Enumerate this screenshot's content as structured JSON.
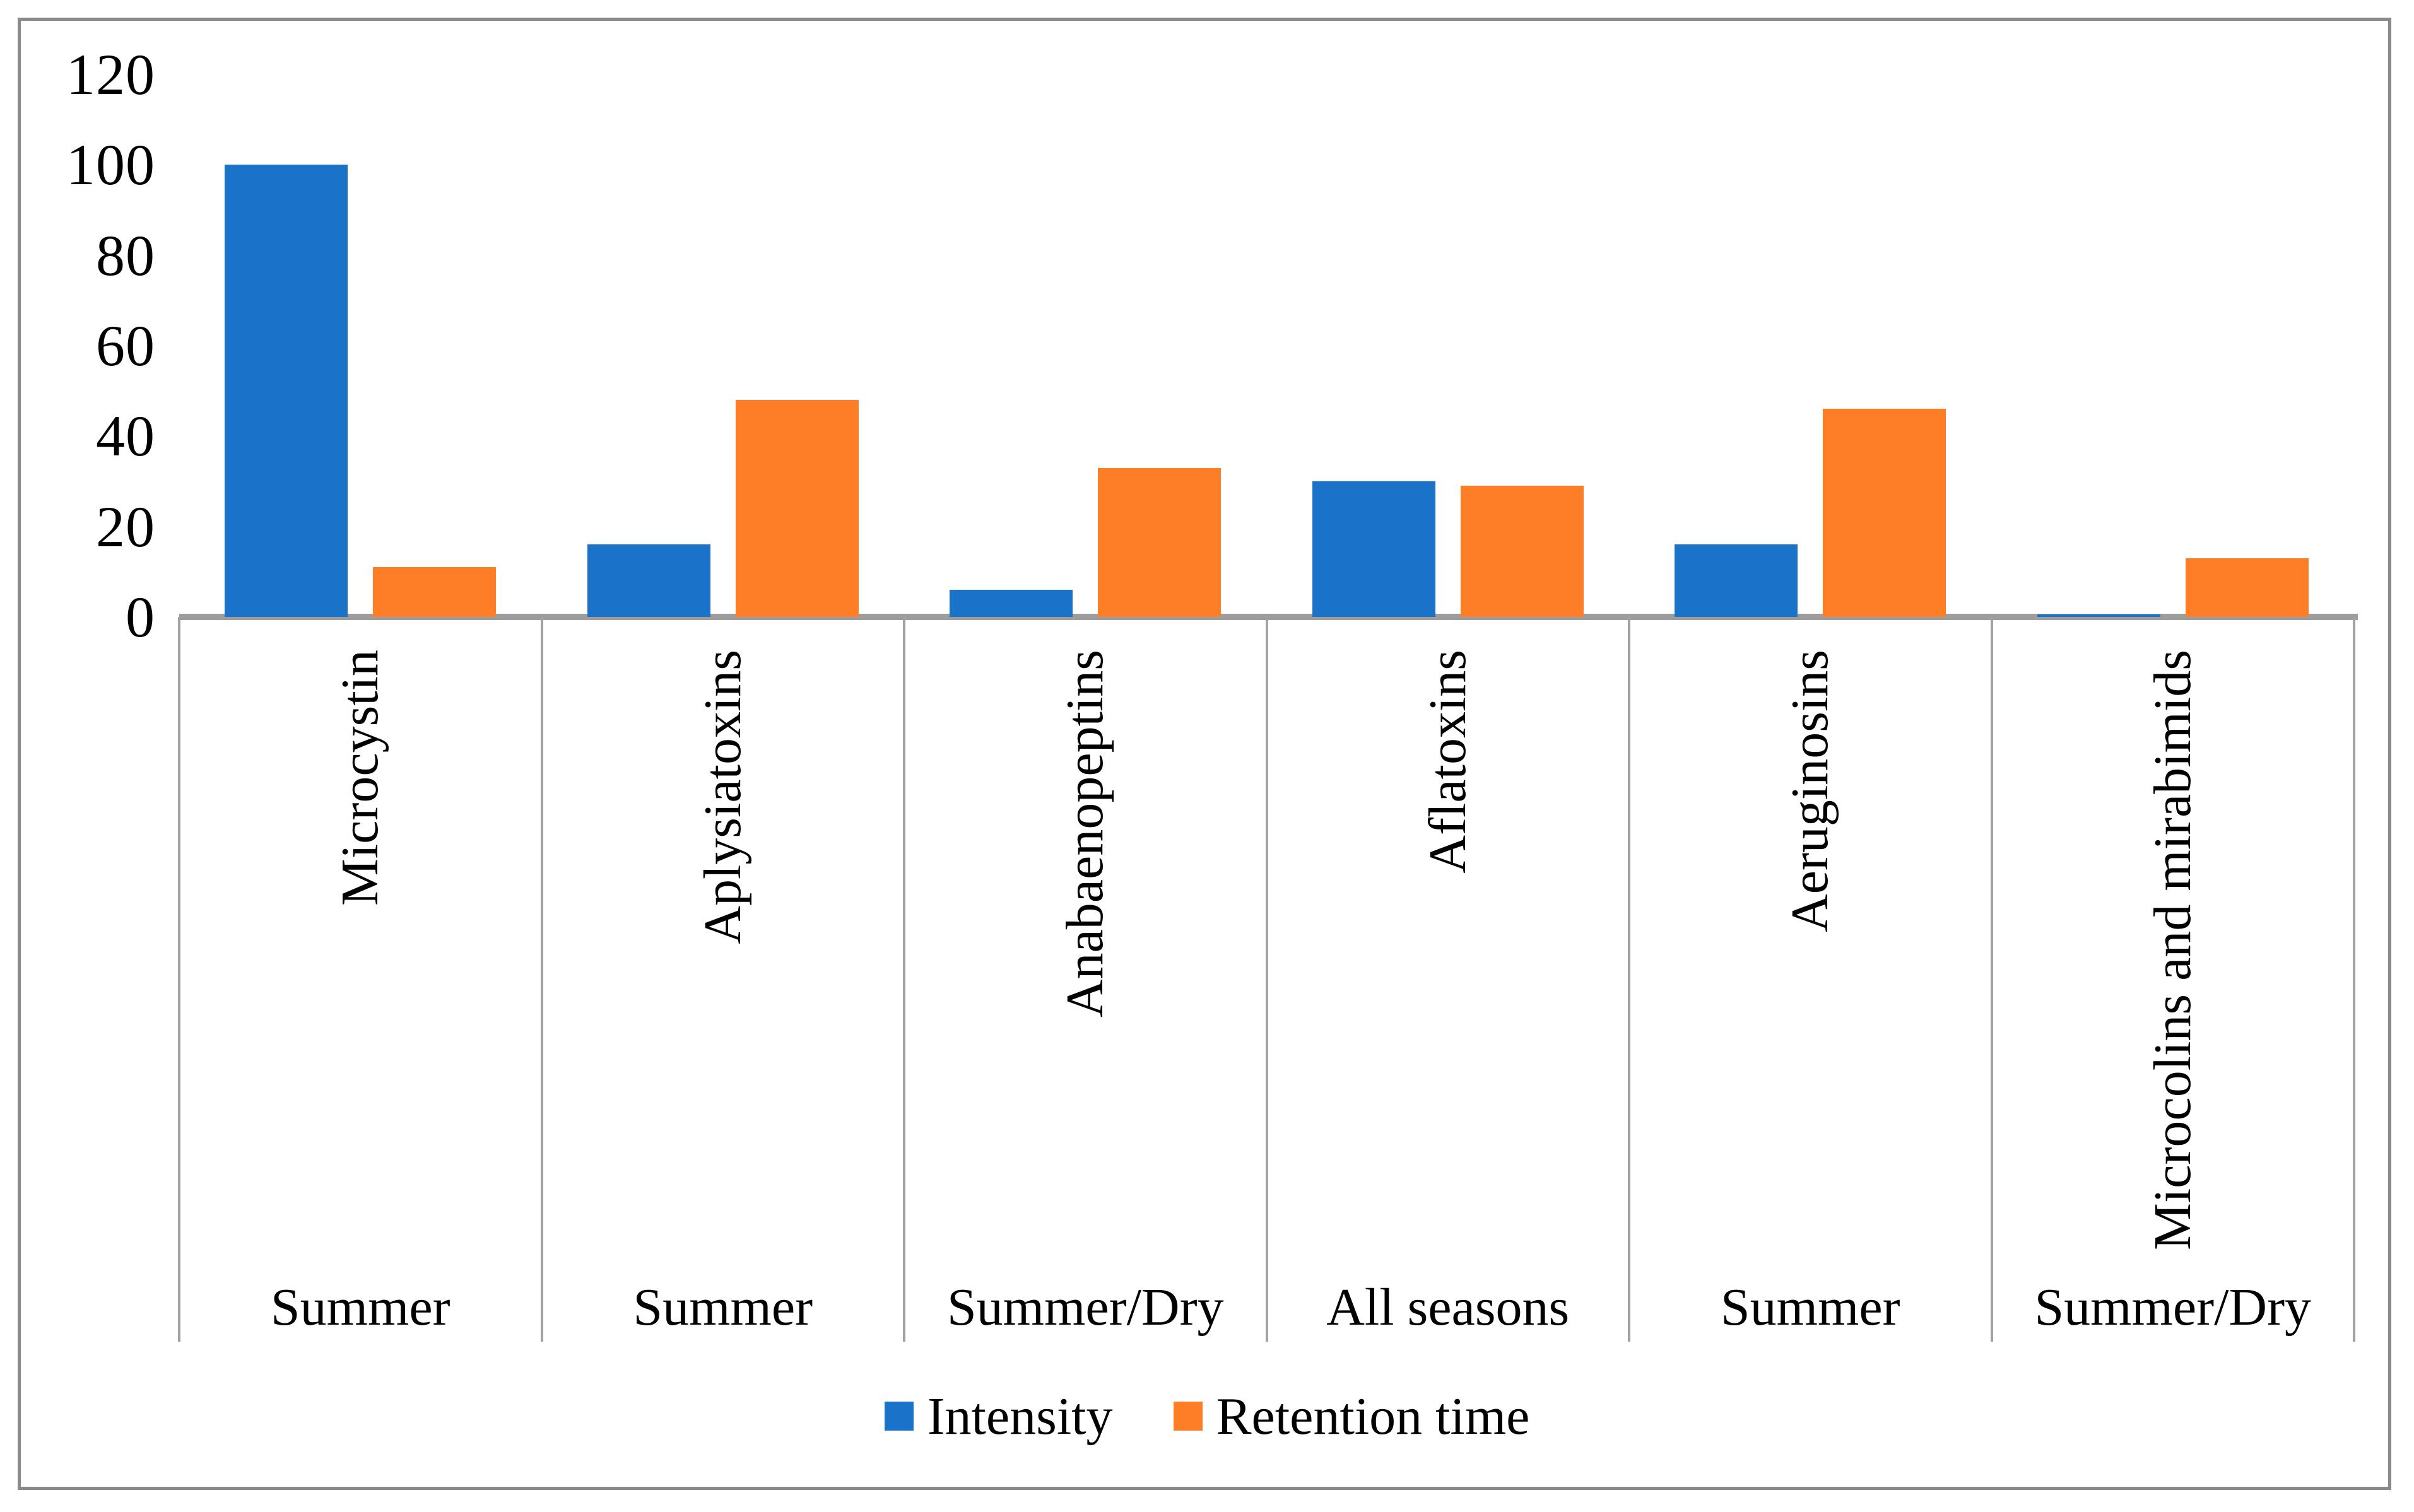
{
  "figure": {
    "background": "#ffffff",
    "border_color": "#8a8a8a",
    "axis_line_color": "#9d9d9d",
    "divider_color": "#a3a3a3",
    "title": ""
  },
  "chart_data": {
    "type": "bar",
    "categories": [
      "Microcystin",
      "Aplysiatoxins",
      "Anabaenopeptins",
      "Aflatoxins",
      "Aeruginosins",
      "Microcolins and mirabimids"
    ],
    "category_seasons": [
      "Summer",
      "Summer",
      "Summer/Dry",
      "All seasons",
      "Summer",
      "Summer/Dry"
    ],
    "series": [
      {
        "name": "Intensity",
        "color": "#1a73c8",
        "values": [
          100,
          16,
          6,
          30,
          16,
          0.5
        ]
      },
      {
        "name": "Retention time",
        "color": "#fd7e27",
        "values": [
          11,
          48,
          33,
          29,
          46,
          13
        ]
      }
    ],
    "ylim": [
      0,
      120
    ],
    "yticks": [
      0,
      20,
      40,
      60,
      80,
      100,
      120
    ],
    "xlabel": "",
    "ylabel": "",
    "grid": false,
    "legend_position": "bottom"
  },
  "legend": {
    "items": [
      {
        "label": "Intensity",
        "color": "#1a73c8"
      },
      {
        "label": "Retention time",
        "color": "#fd7e27"
      }
    ]
  }
}
